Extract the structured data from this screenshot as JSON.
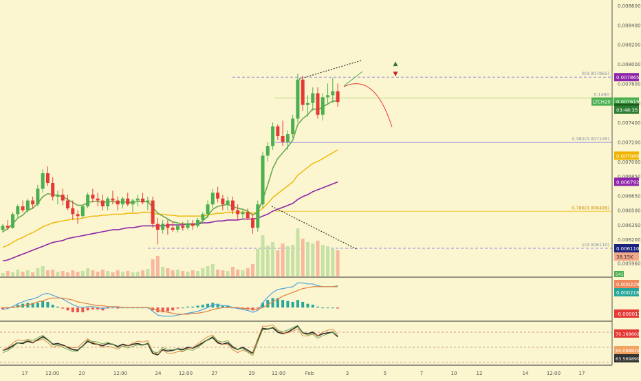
{
  "chart_data": {
    "type": "candlestick",
    "symbol": "LTCH20",
    "countdown": "03:48:35",
    "colors": {
      "background": "#fbf6cf",
      "up": "#4caf50",
      "down": "#e53935",
      "ema_fast": "#6aa84f",
      "ema_mid": "#f0b400",
      "ema_slow": "#8e24aa",
      "fib": "#6c5ce7",
      "macd_line": "#4fa3e0",
      "signal_line": "#e08040"
    },
    "price_axis": {
      "ticks": [
        "0.008600",
        "0.008400",
        "0.008200",
        "0.008000",
        "0.007800",
        "0.007600",
        "0.007400",
        "0.007200",
        "0.007000",
        "0.006850",
        "0.006650",
        "0.006500",
        "0.006350",
        "0.006200",
        "0.005960"
      ],
      "tick_values": [
        0.0086,
        0.0084,
        0.0082,
        0.008,
        0.0078,
        0.0076,
        0.0074,
        0.0072,
        0.007,
        0.00685,
        0.00665,
        0.0065,
        0.00635,
        0.0062,
        0.00596
      ]
    },
    "price_labels": [
      {
        "value": 0.007865,
        "text": "0.007865",
        "bg": "#8e24aa"
      },
      {
        "value": 0.007615,
        "text": "0.007615",
        "bg": "#4caf50"
      },
      {
        "value": 0.007554,
        "text": "0.007554",
        "bg": "#1b5e20"
      },
      {
        "value": 0.00706,
        "text": "0.007060",
        "bg": "#f0b400"
      },
      {
        "value": 0.006792,
        "text": "0.006792",
        "bg": "#8e24aa"
      },
      {
        "value": 0.00611,
        "text": "0.006110",
        "bg": "#1a237e"
      }
    ],
    "volume_label": {
      "text": "38.15K",
      "bg": "#f4a88a"
    },
    "volume_small_label": {
      "text": "541"
    },
    "fib_levels": [
      {
        "label": "0(0.007865)",
        "value": 0.007865
      },
      {
        "label": "0.1480",
        "value": 0.00765
      },
      {
        "label": "0.382(0.007195)",
        "value": 0.007195
      },
      {
        "label": "0.786(0.006489)",
        "value": 0.006489
      },
      {
        "label": "1(0.006110)",
        "value": 0.00611
      }
    ],
    "time_axis": [
      "17",
      "12:00",
      "20",
      "12:00",
      "24",
      "12:00",
      "27",
      "29",
      "12:00",
      "Feb",
      "3",
      "5",
      "7",
      "10",
      "12",
      "14",
      "12:00",
      "17"
    ],
    "candles_ohlc": [
      [
        0.0063,
        0.00636,
        0.00627,
        0.00634
      ],
      [
        0.00634,
        0.0064,
        0.0063,
        0.00632
      ],
      [
        0.00632,
        0.00648,
        0.00631,
        0.00646
      ],
      [
        0.00646,
        0.00656,
        0.00643,
        0.00654
      ],
      [
        0.00654,
        0.0066,
        0.00648,
        0.0065
      ],
      [
        0.0065,
        0.00662,
        0.00648,
        0.0066
      ],
      [
        0.0066,
        0.00664,
        0.00652,
        0.00656
      ],
      [
        0.00656,
        0.00676,
        0.00654,
        0.00672
      ],
      [
        0.00672,
        0.00692,
        0.00668,
        0.00688
      ],
      [
        0.00688,
        0.00695,
        0.00675,
        0.00678
      ],
      [
        0.00678,
        0.00684,
        0.0066,
        0.00664
      ],
      [
        0.00664,
        0.0067,
        0.00656,
        0.00666
      ],
      [
        0.00666,
        0.00672,
        0.00655,
        0.0066
      ],
      [
        0.0066,
        0.00666,
        0.0065,
        0.00652
      ],
      [
        0.00652,
        0.0066,
        0.0064,
        0.00646
      ],
      [
        0.00646,
        0.0065,
        0.00636,
        0.00644
      ],
      [
        0.00644,
        0.00656,
        0.00642,
        0.00654
      ],
      [
        0.00654,
        0.00668,
        0.00652,
        0.00666
      ],
      [
        0.00666,
        0.00672,
        0.00658,
        0.00662
      ],
      [
        0.00662,
        0.00668,
        0.00654,
        0.0066
      ],
      [
        0.0066,
        0.00666,
        0.0065,
        0.00654
      ],
      [
        0.00654,
        0.00664,
        0.0065,
        0.00662
      ],
      [
        0.00662,
        0.0067,
        0.00656,
        0.0066
      ],
      [
        0.0066,
        0.00664,
        0.0065,
        0.00656
      ],
      [
        0.00656,
        0.00664,
        0.00652,
        0.00662
      ],
      [
        0.00662,
        0.00668,
        0.00654,
        0.00656
      ],
      [
        0.00656,
        0.00662,
        0.00648,
        0.0066
      ],
      [
        0.0066,
        0.00666,
        0.00654,
        0.00662
      ],
      [
        0.00662,
        0.00668,
        0.00656,
        0.00658
      ],
      [
        0.00658,
        0.00664,
        0.0065,
        0.0066
      ],
      [
        0.0066,
        0.00664,
        0.00632,
        0.00636
      ],
      [
        0.00636,
        0.00642,
        0.00615,
        0.0063
      ],
      [
        0.0063,
        0.0064,
        0.00626,
        0.00636
      ],
      [
        0.00636,
        0.0064,
        0.00625,
        0.00632
      ],
      [
        0.00632,
        0.00638,
        0.00628,
        0.0063
      ],
      [
        0.0063,
        0.00636,
        0.00627,
        0.00634
      ],
      [
        0.00634,
        0.00638,
        0.00629,
        0.00632
      ],
      [
        0.00632,
        0.0064,
        0.0063,
        0.00636
      ],
      [
        0.00636,
        0.0064,
        0.0063,
        0.00634
      ],
      [
        0.00634,
        0.00642,
        0.00632,
        0.0064
      ],
      [
        0.0064,
        0.00648,
        0.00636,
        0.00646
      ],
      [
        0.00646,
        0.0066,
        0.00642,
        0.00656
      ],
      [
        0.00656,
        0.00672,
        0.00652,
        0.00668
      ],
      [
        0.00668,
        0.00674,
        0.00658,
        0.00662
      ],
      [
        0.00662,
        0.00666,
        0.0065,
        0.00656
      ],
      [
        0.00656,
        0.00664,
        0.0065,
        0.0066
      ],
      [
        0.0066,
        0.00664,
        0.00646,
        0.0065
      ],
      [
        0.0065,
        0.00656,
        0.0064,
        0.00646
      ],
      [
        0.00646,
        0.0065,
        0.0064,
        0.00648
      ],
      [
        0.00648,
        0.00652,
        0.0064,
        0.00642
      ],
      [
        0.00642,
        0.00646,
        0.00626,
        0.00632
      ],
      [
        0.00632,
        0.0066,
        0.00628,
        0.00656
      ],
      [
        0.00656,
        0.0071,
        0.00652,
        0.00706
      ],
      [
        0.00706,
        0.0072,
        0.007,
        0.00716
      ],
      [
        0.00716,
        0.0074,
        0.00712,
        0.00736
      ],
      [
        0.00736,
        0.00738,
        0.00722,
        0.00726
      ],
      [
        0.00726,
        0.00742,
        0.00716,
        0.0072
      ],
      [
        0.0072,
        0.00732,
        0.00712,
        0.00728
      ],
      [
        0.00728,
        0.00748,
        0.00724,
        0.00744
      ],
      [
        0.00744,
        0.0079,
        0.0074,
        0.00784
      ],
      [
        0.00784,
        0.00788,
        0.00752,
        0.00758
      ],
      [
        0.00758,
        0.00768,
        0.00746,
        0.0076
      ],
      [
        0.0076,
        0.00776,
        0.00752,
        0.0077
      ],
      [
        0.0077,
        0.00776,
        0.00744,
        0.00748
      ],
      [
        0.00748,
        0.0077,
        0.00742,
        0.00766
      ],
      [
        0.00766,
        0.0078,
        0.00758,
        0.00768
      ],
      [
        0.00768,
        0.00786,
        0.0076,
        0.00772
      ],
      [
        0.00772,
        0.0078,
        0.00756,
        0.00761
      ]
    ],
    "ema_fast": [
      0.00628,
      0.00631,
      0.00636,
      0.00642,
      0.00645,
      0.0065,
      0.00652,
      0.00657,
      0.00664,
      0.00667,
      0.00666,
      0.00665,
      0.00664,
      0.00661,
      0.00658,
      0.00655,
      0.00655,
      0.00658,
      0.00659,
      0.00659,
      0.00658,
      0.00659,
      0.00659,
      0.00658,
      0.00659,
      0.00658,
      0.00658,
      0.00659,
      0.00659,
      0.00659,
      0.00653,
      0.00647,
      0.00644,
      0.00641,
      0.00638,
      0.00637,
      0.00636,
      0.00636,
      0.00635,
      0.00636,
      0.00639,
      0.00644,
      0.00651,
      0.00654,
      0.00655,
      0.00656,
      0.00654,
      0.00652,
      0.00651,
      0.00649,
      0.00645,
      0.00648,
      0.00661,
      0.00676,
      0.00693,
      0.00703,
      0.00709,
      0.00715,
      0.00722,
      0.00738,
      0.00744,
      0.00748,
      0.00754,
      0.00753,
      0.00756,
      0.00759,
      0.00762,
      0.00762
    ],
    "ema_mid": [
      0.00612,
      0.00614,
      0.00617,
      0.0062,
      0.00622,
      0.00625,
      0.00627,
      0.0063,
      0.00633,
      0.00635,
      0.00637,
      0.00638,
      0.00639,
      0.0064,
      0.00641,
      0.00641,
      0.00642,
      0.00643,
      0.00644,
      0.00644,
      0.00645,
      0.00645,
      0.00646,
      0.00646,
      0.00646,
      0.00647,
      0.00647,
      0.00647,
      0.00648,
      0.00648,
      0.00647,
      0.00646,
      0.00646,
      0.00645,
      0.00645,
      0.00644,
      0.00644,
      0.00644,
      0.00644,
      0.00644,
      0.00644,
      0.00645,
      0.00646,
      0.00647,
      0.00647,
      0.00648,
      0.00648,
      0.00648,
      0.00648,
      0.00648,
      0.00647,
      0.00648,
      0.00652,
      0.00657,
      0.00663,
      0.00667,
      0.00671,
      0.00675,
      0.00679,
      0.00686,
      0.0069,
      0.00694,
      0.00698,
      0.007,
      0.00703,
      0.00706,
      0.00709,
      0.00712
    ],
    "ema_slow": [
      0.00598,
      0.00599,
      0.00601,
      0.00603,
      0.00605,
      0.00607,
      0.00609,
      0.00611,
      0.00613,
      0.00615,
      0.00617,
      0.00618,
      0.00619,
      0.00621,
      0.00622,
      0.00623,
      0.00624,
      0.00625,
      0.00626,
      0.00627,
      0.00628,
      0.00629,
      0.0063,
      0.0063,
      0.00631,
      0.00632,
      0.00632,
      0.00633,
      0.00634,
      0.00634,
      0.00634,
      0.00634,
      0.00634,
      0.00635,
      0.00635,
      0.00635,
      0.00635,
      0.00636,
      0.00636,
      0.00636,
      0.00637,
      0.00637,
      0.00638,
      0.00639,
      0.00639,
      0.0064,
      0.0064,
      0.0064,
      0.00641,
      0.00641,
      0.00641,
      0.00642,
      0.00644,
      0.00646,
      0.00649,
      0.00651,
      0.00653,
      0.00655,
      0.00657,
      0.00661,
      0.00664,
      0.00666,
      0.00669,
      0.00671,
      0.00673,
      0.00675,
      0.00677,
      0.00679
    ],
    "volume": [
      5,
      8,
      6,
      10,
      7,
      9,
      6,
      12,
      15,
      9,
      10,
      7,
      8,
      6,
      9,
      7,
      8,
      12,
      9,
      7,
      10,
      8,
      6,
      9,
      7,
      8,
      6,
      7,
      9,
      11,
      25,
      30,
      14,
      12,
      9,
      10,
      8,
      7,
      9,
      8,
      12,
      15,
      18,
      10,
      9,
      8,
      14,
      10,
      9,
      12,
      18,
      40,
      60,
      45,
      50,
      38,
      48,
      44,
      46,
      70,
      55,
      50,
      48,
      52,
      46,
      44,
      40,
      38
    ],
    "macd_panel": {
      "labels": [
        {
          "text": "0.000229",
          "bg": "#f08a5d"
        },
        {
          "text": "0.000218",
          "bg": "#26a69a"
        },
        {
          "text": "-0.000011",
          "bg": "#e53935"
        }
      ],
      "macd": [
        -2e-05,
        -1e-05,
        1e-05,
        4e-05,
        6e-05,
        8e-05,
        9e-05,
        0.00011,
        0.00014,
        0.00015,
        0.00013,
        0.00011,
        9e-05,
        6e-05,
        3e-05,
        1e-05,
        0,
        1e-05,
        1e-05,
        0,
        -1e-05,
        0,
        1e-05,
        0,
        0,
        0,
        0,
        0,
        0,
        0,
        -4e-05,
        -8e-05,
        -9e-05,
        -9e-05,
        -9e-05,
        -8e-05,
        -7e-05,
        -6e-05,
        -5e-05,
        -4e-05,
        -2e-05,
        0,
        3e-05,
        3e-05,
        2e-05,
        2e-05,
        0,
        -1e-05,
        -2e-05,
        -3e-05,
        -5e-05,
        -3e-05,
        5e-05,
        0.00011,
        0.00016,
        0.00019,
        0.0002,
        0.00021,
        0.00022,
        0.00026,
        0.00026,
        0.00025,
        0.00025,
        0.00023,
        0.00022,
        0.00022,
        0.00022,
        0.00022
      ],
      "signal": [
        0,
        0,
        0,
        1e-05,
        2e-05,
        3e-05,
        4e-05,
        6e-05,
        7e-05,
        9e-05,
        0.0001,
        0.0001,
        0.0001,
        9e-05,
        8e-05,
        6e-05,
        5e-05,
        4e-05,
        3e-05,
        2e-05,
        2e-05,
        1e-05,
        1e-05,
        1e-05,
        0,
        0,
        0,
        0,
        0,
        0,
        -1e-05,
        -3e-05,
        -4e-05,
        -5e-05,
        -6e-05,
        -7e-05,
        -7e-05,
        -7e-05,
        -6e-05,
        -6e-05,
        -5e-05,
        -4e-05,
        -2e-05,
        -1e-05,
        0,
        0,
        0,
        0,
        -1e-05,
        -1e-05,
        -2e-05,
        -2e-05,
        0,
        3e-05,
        6e-05,
        9e-05,
        0.00012,
        0.00014,
        0.00016,
        0.00018,
        0.0002,
        0.00021,
        0.00022,
        0.00022,
        0.00022,
        0.00022,
        0.00022,
        0.00023
      ]
    },
    "rsi_panel": {
      "labels": [
        {
          "text": "70.168602",
          "bg": "#e53935"
        },
        {
          "text": "65.088819",
          "bg": "#f4a261"
        },
        {
          "text": "63.569899",
          "bg": "#333333"
        }
      ],
      "rsi": [
        46,
        48,
        52,
        56,
        55,
        58,
        56,
        60,
        64,
        60,
        54,
        55,
        53,
        50,
        47,
        46,
        52,
        58,
        55,
        54,
        52,
        55,
        54,
        51,
        54,
        52,
        54,
        55,
        53,
        55,
        42,
        40,
        47,
        45,
        46,
        48,
        47,
        50,
        49,
        52,
        56,
        60,
        63,
        56,
        54,
        56,
        50,
        47,
        50,
        46,
        42,
        60,
        75,
        74,
        76,
        70,
        68,
        70,
        74,
        78,
        69,
        68,
        70,
        65,
        68,
        69,
        70,
        64
      ]
    }
  }
}
